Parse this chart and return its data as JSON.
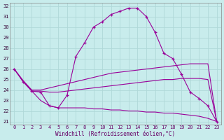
{
  "xlabel": "Windchill (Refroidissement éolien,°C)",
  "bg_color": "#c8ecec",
  "grid_color": "#b0d8d8",
  "line_color": "#990099",
  "ylim": [
    21,
    32
  ],
  "xlim": [
    -0.5,
    23.5
  ],
  "yticks": [
    21,
    22,
    23,
    24,
    25,
    26,
    27,
    28,
    29,
    30,
    31,
    32
  ],
  "xticks": [
    0,
    1,
    2,
    3,
    4,
    5,
    6,
    7,
    8,
    9,
    10,
    11,
    12,
    13,
    14,
    15,
    16,
    17,
    18,
    19,
    20,
    21,
    22,
    23
  ],
  "lines": [
    {
      "x": [
        0,
        1,
        2,
        3,
        4,
        5,
        6,
        7,
        8,
        9,
        10,
        11,
        12,
        13,
        14,
        15,
        16,
        17,
        18,
        19,
        20,
        21,
        22,
        23
      ],
      "y": [
        26.0,
        24.8,
        23.9,
        23.8,
        22.5,
        22.3,
        23.5,
        27.2,
        28.5,
        30.0,
        30.5,
        31.2,
        31.5,
        31.8,
        31.8,
        31.0,
        29.5,
        27.5,
        27.0,
        25.5,
        23.8,
        23.2,
        22.5,
        21.0
      ],
      "marker": true
    },
    {
      "x": [
        0,
        1,
        2,
        3,
        4,
        5,
        6,
        7,
        8,
        9,
        10,
        11,
        12,
        13,
        14,
        15,
        16,
        17,
        18,
        19,
        20,
        21,
        22,
        23
      ],
      "y": [
        26.0,
        24.9,
        24.0,
        24.0,
        24.2,
        24.4,
        24.6,
        24.8,
        25.0,
        25.2,
        25.4,
        25.6,
        25.7,
        25.8,
        25.9,
        26.0,
        26.1,
        26.2,
        26.3,
        26.4,
        26.5,
        26.5,
        26.5,
        21.0
      ],
      "marker": false
    },
    {
      "x": [
        0,
        1,
        2,
        3,
        4,
        5,
        6,
        7,
        8,
        9,
        10,
        11,
        12,
        13,
        14,
        15,
        16,
        17,
        18,
        19,
        20,
        21,
        22,
        23
      ],
      "y": [
        26.0,
        24.9,
        23.9,
        23.9,
        23.8,
        23.8,
        23.9,
        24.0,
        24.1,
        24.2,
        24.3,
        24.4,
        24.5,
        24.6,
        24.7,
        24.8,
        24.9,
        25.0,
        25.0,
        25.1,
        25.1,
        25.1,
        25.0,
        21.0
      ],
      "marker": false
    },
    {
      "x": [
        0,
        1,
        2,
        3,
        4,
        5,
        6,
        7,
        8,
        9,
        10,
        11,
        12,
        13,
        14,
        15,
        16,
        17,
        18,
        19,
        20,
        21,
        22,
        23
      ],
      "y": [
        26.0,
        24.8,
        23.9,
        23.0,
        22.5,
        22.3,
        22.3,
        22.3,
        22.3,
        22.2,
        22.2,
        22.1,
        22.1,
        22.0,
        22.0,
        21.9,
        21.9,
        21.8,
        21.8,
        21.7,
        21.6,
        21.5,
        21.3,
        21.0
      ],
      "marker": false
    }
  ]
}
